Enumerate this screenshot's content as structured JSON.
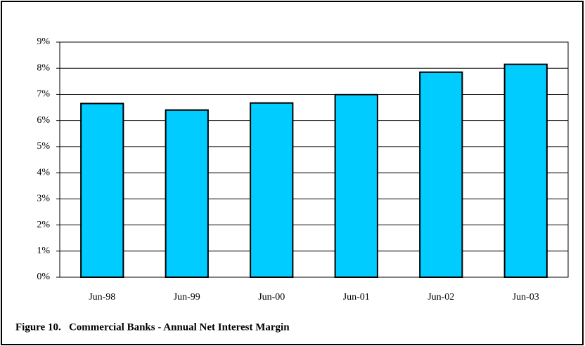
{
  "chart_data": {
    "type": "bar",
    "title": "Figure 10.   Commercial Banks - Annual Net Interest Margin",
    "categories": [
      "Jun-98",
      "Jun-99",
      "Jun-00",
      "Jun-01",
      "Jun-02",
      "Jun-03"
    ],
    "values": [
      6.65,
      6.4,
      6.67,
      6.99,
      7.85,
      8.15
    ],
    "color": "#00ccff",
    "ylim": [
      0,
      9
    ],
    "yticks": [
      {
        "value": 0,
        "label": "0%"
      },
      {
        "value": 1,
        "label": "1%"
      },
      {
        "value": 2,
        "label": "2%"
      },
      {
        "value": 3,
        "label": "3%"
      },
      {
        "value": 4,
        "label": "4%"
      },
      {
        "value": 5,
        "label": "5%"
      },
      {
        "value": 6,
        "label": "6%"
      },
      {
        "value": 7,
        "label": "7%"
      },
      {
        "value": 8,
        "label": "8%"
      },
      {
        "value": 9,
        "label": "9%"
      }
    ],
    "grid": true
  }
}
